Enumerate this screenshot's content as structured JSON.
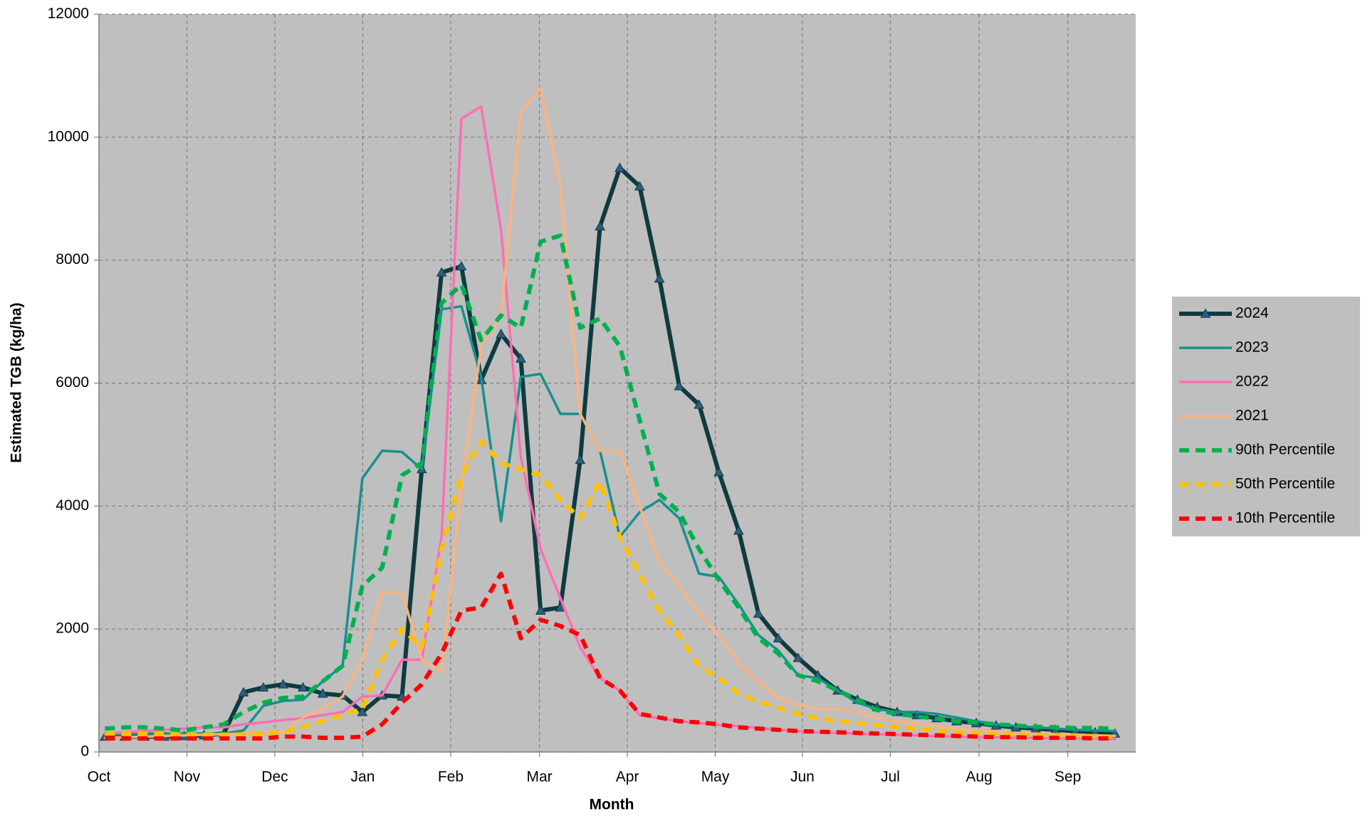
{
  "chart_data": {
    "type": "line",
    "xlabel": "Month",
    "ylabel": "Estimated TGB (kg/ha)",
    "x": [
      0,
      1,
      2,
      3,
      4,
      5,
      6,
      7,
      8,
      9,
      10,
      11,
      12,
      13,
      14,
      15,
      16,
      17,
      18,
      19,
      20,
      21,
      22,
      23,
      24,
      25,
      26,
      27,
      28,
      29,
      30,
      31,
      32,
      33,
      34,
      35,
      36,
      37,
      38,
      39,
      40,
      41,
      42,
      43,
      44,
      45,
      46,
      47,
      48,
      49,
      50,
      51
    ],
    "xlim": [
      -0.3,
      52.05
    ],
    "xticks": [
      {
        "value": -0.3,
        "label": "Oct"
      },
      {
        "value": 4.14,
        "label": "Nov"
      },
      {
        "value": 8.58,
        "label": "Dec"
      },
      {
        "value": 13.02,
        "label": "Jan"
      },
      {
        "value": 17.46,
        "label": "Feb"
      },
      {
        "value": 21.94,
        "label": "Mar"
      },
      {
        "value": 26.38,
        "label": "Apr"
      },
      {
        "value": 30.82,
        "label": "May"
      },
      {
        "value": 35.22,
        "label": "Jun"
      },
      {
        "value": 39.66,
        "label": "Jul"
      },
      {
        "value": 44.14,
        "label": "Aug"
      },
      {
        "value": 48.62,
        "label": "Sep"
      }
    ],
    "ylim": [
      0,
      12000
    ],
    "yticks": [
      0,
      2000,
      4000,
      6000,
      8000,
      10000,
      12000
    ],
    "grid": true,
    "legend": "right",
    "series": [
      {
        "name": "2024",
        "color": "#0f3b3f",
        "marker": "triangle",
        "marker_color": "#2f5d80",
        "width": 6,
        "dash": false,
        "values": [
          250,
          250,
          250,
          250,
          260,
          270,
          300,
          970,
          1050,
          1100,
          1050,
          950,
          920,
          650,
          920,
          900,
          4600,
          7800,
          7900,
          6050,
          6800,
          6400,
          2300,
          2350,
          4750,
          8550,
          9500,
          9200,
          7700,
          5950,
          5650,
          4550,
          3600,
          2250,
          1850,
          1530,
          1250,
          1000,
          850,
          730,
          650,
          600,
          550,
          500,
          470,
          430,
          400,
          380,
          360,
          340,
          320,
          300
        ]
      },
      {
        "name": "2023",
        "color": "#17908f",
        "width": 3.5,
        "dash": false,
        "values": [
          280,
          290,
          300,
          300,
          300,
          300,
          300,
          350,
          750,
          830,
          850,
          1150,
          1400,
          4450,
          4900,
          4880,
          4600,
          7200,
          7250,
          6100,
          3750,
          6100,
          6150,
          5500,
          5500,
          4900,
          3500,
          3900,
          4100,
          3800,
          2900,
          2850,
          2400,
          1900,
          1650,
          1250,
          1200,
          1000,
          800,
          700,
          650,
          650,
          620,
          560,
          500,
          450,
          420,
          400,
          380,
          360,
          350,
          340
        ]
      },
      {
        "name": "2022",
        "color": "#ff6eb4",
        "width": 3.5,
        "dash": false,
        "values": [
          300,
          320,
          340,
          360,
          380,
          400,
          400,
          450,
          480,
          520,
          550,
          600,
          650,
          900,
          920,
          1500,
          1500,
          3500,
          10300,
          10500,
          8500,
          4800,
          3300,
          2500,
          1700,
          1200,
          1000,
          600,
          550,
          500,
          470,
          440,
          420,
          390,
          360,
          340,
          320,
          310,
          300,
          290,
          280,
          270,
          260,
          250,
          240,
          240,
          230,
          230,
          220,
          220,
          220,
          210
        ]
      },
      {
        "name": "2021",
        "color": "#ffb27c",
        "width": 3.5,
        "dash": false,
        "values": [
          230,
          240,
          250,
          260,
          270,
          280,
          290,
          300,
          300,
          310,
          560,
          700,
          900,
          1500,
          2600,
          2600,
          1500,
          1300,
          4300,
          6600,
          7100,
          10400,
          10800,
          9200,
          5500,
          4900,
          4900,
          4000,
          3100,
          2700,
          2250,
          1900,
          1450,
          1150,
          880,
          770,
          700,
          700,
          650,
          550,
          500,
          460,
          420,
          380,
          350,
          330,
          310,
          300,
          290,
          280,
          270,
          260
        ]
      },
      {
        "name": "90th Percentile",
        "color": "#00b050",
        "width": 6,
        "dash": true,
        "values": [
          380,
          400,
          400,
          380,
          350,
          400,
          450,
          650,
          800,
          880,
          900,
          1150,
          1400,
          2700,
          3000,
          4500,
          4700,
          7300,
          7600,
          6700,
          7100,
          6900,
          8300,
          8400,
          6900,
          7050,
          6600,
          5400,
          4200,
          3900,
          3300,
          2800,
          2350,
          1850,
          1600,
          1250,
          1150,
          1000,
          850,
          680,
          620,
          580,
          540,
          500,
          480,
          450,
          430,
          410,
          400,
          390,
          390,
          380
        ]
      },
      {
        "name": "50th Percentile",
        "color": "#ffc000",
        "width": 6,
        "dash": true,
        "values": [
          300,
          300,
          300,
          290,
          280,
          280,
          280,
          280,
          300,
          330,
          400,
          500,
          600,
          700,
          1500,
          2000,
          1700,
          3300,
          4500,
          5050,
          4700,
          4600,
          4500,
          4100,
          3800,
          4400,
          3500,
          2900,
          2300,
          1900,
          1400,
          1200,
          950,
          820,
          720,
          620,
          550,
          500,
          470,
          440,
          400,
          380,
          350,
          320,
          300,
          290,
          280,
          270,
          260,
          260,
          250,
          250
        ]
      },
      {
        "name": "10th Percentile",
        "color": "#ff0000",
        "width": 6,
        "dash": true,
        "values": [
          220,
          220,
          220,
          220,
          220,
          220,
          220,
          220,
          220,
          250,
          250,
          230,
          230,
          250,
          450,
          800,
          1100,
          1600,
          2300,
          2350,
          2900,
          1850,
          2150,
          2050,
          1900,
          1200,
          1000,
          620,
          560,
          500,
          480,
          450,
          400,
          380,
          360,
          340,
          330,
          320,
          310,
          300,
          290,
          280,
          270,
          260,
          250,
          240,
          240,
          230,
          230,
          230,
          220,
          220
        ]
      }
    ]
  }
}
